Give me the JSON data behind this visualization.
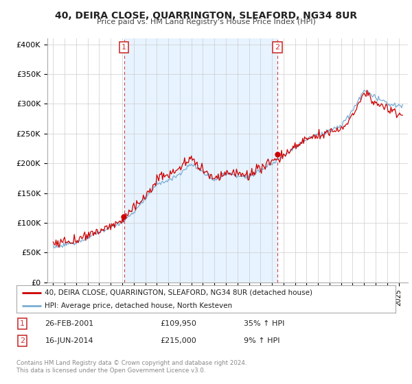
{
  "title": "40, DEIRA CLOSE, QUARRINGTON, SLEAFORD, NG34 8UR",
  "subtitle": "Price paid vs. HM Land Registry's House Price Index (HPI)",
  "ylabel_ticks": [
    "£0",
    "£50K",
    "£100K",
    "£150K",
    "£200K",
    "£250K",
    "£300K",
    "£350K",
    "£400K"
  ],
  "ytick_values": [
    0,
    50000,
    100000,
    150000,
    200000,
    250000,
    300000,
    350000,
    400000
  ],
  "ylim": [
    0,
    410000
  ],
  "sale1_date": 2001.15,
  "sale1_price": 109950,
  "sale2_date": 2014.46,
  "sale2_price": 215000,
  "line_color_property": "#cc0000",
  "line_color_hpi": "#7aadd4",
  "vline_color": "#cc4444",
  "annotation_box_color": "#cc3333",
  "fill_color": "#ddeeff",
  "legend_label_property": "40, DEIRA CLOSE, QUARRINGTON, SLEAFORD, NG34 8UR (detached house)",
  "legend_label_hpi": "HPI: Average price, detached house, North Kesteven",
  "table_row1": [
    "1",
    "26-FEB-2001",
    "£109,950",
    "35% ↑ HPI"
  ],
  "table_row2": [
    "2",
    "16-JUN-2014",
    "£215,000",
    "9% ↑ HPI"
  ],
  "footnote": "Contains HM Land Registry data © Crown copyright and database right 2024.\nThis data is licensed under the Open Government Licence v3.0.",
  "background_color": "#ffffff",
  "grid_color": "#cccccc",
  "xlim_start": 1994.5,
  "xlim_end": 2025.8
}
